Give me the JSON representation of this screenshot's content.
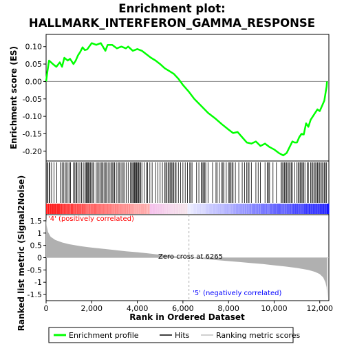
{
  "chart_data": {
    "type": "line",
    "title_line1": "Enrichment plot:",
    "title_line2": "HALLMARK_INTERFERON_GAMMA_RESPONSE",
    "ylabel_top": "Enrichment score (ES)",
    "ylabel_bottom": "Ranked list metric (Signal2Noise)",
    "xlabel": "Rank in Ordered Dataset",
    "x_range": [
      0,
      12400
    ],
    "x_ticks": [
      0,
      2000,
      4000,
      6000,
      8000,
      10000,
      12000
    ],
    "x_tick_labels": [
      "0",
      "2,000",
      "4,000",
      "6,000",
      "8,000",
      "10,000",
      "12,000"
    ],
    "es_ylim": [
      -0.228,
      0.135
    ],
    "es_ticks": [
      0.1,
      0.05,
      0.0,
      -0.05,
      -0.1,
      -0.15,
      -0.2
    ],
    "es_tick_labels": [
      "0.10",
      "0.05",
      "0.00",
      "-0.05",
      "-0.10",
      "-0.15",
      "-0.20"
    ],
    "metric_ylim": [
      -1.75,
      1.75
    ],
    "metric_ticks": [
      1.5,
      1.0,
      0.5,
      0.0,
      -0.5,
      -1.0,
      -1.5
    ],
    "metric_tick_labels": [
      "1.5",
      "1",
      "0.5",
      "0",
      "-0.5",
      "-1",
      "-1.5"
    ],
    "zero_cross_rank": 6265,
    "zero_cross_label": "Zero cross at 6265",
    "pos_label": "'4' (positively correlated)",
    "neg_label": "'5' (negatively correlated)",
    "pos_color": "#ff0000",
    "neg_color": "#0000ff",
    "curve_color": "#00ff00",
    "metric_fill_color": "#b0b0b0",
    "enrichment_profile": [
      [
        0,
        0.0
      ],
      [
        60,
        0.03
      ],
      [
        130,
        0.06
      ],
      [
        300,
        0.05
      ],
      [
        450,
        0.042
      ],
      [
        600,
        0.055
      ],
      [
        700,
        0.042
      ],
      [
        800,
        0.068
      ],
      [
        950,
        0.06
      ],
      [
        1050,
        0.065
      ],
      [
        1200,
        0.05
      ],
      [
        1300,
        0.06
      ],
      [
        1400,
        0.075
      ],
      [
        1500,
        0.085
      ],
      [
        1600,
        0.098
      ],
      [
        1700,
        0.09
      ],
      [
        1800,
        0.092
      ],
      [
        2000,
        0.11
      ],
      [
        2200,
        0.105
      ],
      [
        2400,
        0.11
      ],
      [
        2600,
        0.088
      ],
      [
        2700,
        0.105
      ],
      [
        2900,
        0.105
      ],
      [
        3100,
        0.095
      ],
      [
        3300,
        0.1
      ],
      [
        3500,
        0.095
      ],
      [
        3600,
        0.1
      ],
      [
        3800,
        0.088
      ],
      [
        4000,
        0.093
      ],
      [
        4200,
        0.088
      ],
      [
        4400,
        0.078
      ],
      [
        4600,
        0.068
      ],
      [
        4800,
        0.06
      ],
      [
        5000,
        0.05
      ],
      [
        5200,
        0.038
      ],
      [
        5400,
        0.03
      ],
      [
        5600,
        0.022
      ],
      [
        5800,
        0.008
      ],
      [
        6000,
        -0.01
      ],
      [
        6265,
        -0.03
      ],
      [
        6500,
        -0.05
      ],
      [
        6800,
        -0.07
      ],
      [
        7100,
        -0.09
      ],
      [
        7400,
        -0.105
      ],
      [
        7700,
        -0.122
      ],
      [
        8000,
        -0.138
      ],
      [
        8200,
        -0.148
      ],
      [
        8400,
        -0.145
      ],
      [
        8600,
        -0.16
      ],
      [
        8800,
        -0.175
      ],
      [
        9000,
        -0.178
      ],
      [
        9200,
        -0.172
      ],
      [
        9400,
        -0.185
      ],
      [
        9600,
        -0.178
      ],
      [
        9800,
        -0.188
      ],
      [
        10000,
        -0.195
      ],
      [
        10200,
        -0.205
      ],
      [
        10400,
        -0.212
      ],
      [
        10550,
        -0.205
      ],
      [
        10700,
        -0.185
      ],
      [
        10800,
        -0.172
      ],
      [
        10900,
        -0.175
      ],
      [
        11000,
        -0.175
      ],
      [
        11100,
        -0.16
      ],
      [
        11200,
        -0.15
      ],
      [
        11300,
        -0.152
      ],
      [
        11400,
        -0.12
      ],
      [
        11500,
        -0.13
      ],
      [
        11600,
        -0.11
      ],
      [
        11700,
        -0.1
      ],
      [
        11800,
        -0.09
      ],
      [
        11900,
        -0.08
      ],
      [
        12000,
        -0.085
      ],
      [
        12100,
        -0.07
      ],
      [
        12200,
        -0.055
      ],
      [
        12250,
        -0.035
      ],
      [
        12300,
        -0.015
      ],
      [
        12320,
        0.0
      ]
    ],
    "metric_profile": [
      [
        0,
        1.6
      ],
      [
        25,
        1.3
      ],
      [
        80,
        1.05
      ],
      [
        200,
        0.85
      ],
      [
        400,
        0.72
      ],
      [
        700,
        0.62
      ],
      [
        1000,
        0.55
      ],
      [
        1500,
        0.47
      ],
      [
        2000,
        0.41
      ],
      [
        2500,
        0.36
      ],
      [
        3000,
        0.31
      ],
      [
        3500,
        0.26
      ],
      [
        4000,
        0.22
      ],
      [
        4500,
        0.17
      ],
      [
        5000,
        0.12
      ],
      [
        5500,
        0.07
      ],
      [
        6000,
        0.02
      ],
      [
        6265,
        0.0
      ],
      [
        6500,
        -0.02
      ],
      [
        7000,
        -0.06
      ],
      [
        7500,
        -0.1
      ],
      [
        8000,
        -0.14
      ],
      [
        8500,
        -0.18
      ],
      [
        9000,
        -0.22
      ],
      [
        9500,
        -0.26
      ],
      [
        10000,
        -0.31
      ],
      [
        10500,
        -0.36
      ],
      [
        11000,
        -0.42
      ],
      [
        11500,
        -0.5
      ],
      [
        11800,
        -0.58
      ],
      [
        12000,
        -0.67
      ],
      [
        12150,
        -0.8
      ],
      [
        12250,
        -1.0
      ],
      [
        12300,
        -1.2
      ],
      [
        12330,
        -1.65
      ]
    ],
    "hits": [
      40,
      60,
      130,
      160,
      240,
      350,
      470,
      620,
      700,
      760,
      830,
      880,
      960,
      1020,
      1070,
      1200,
      1260,
      1310,
      1350,
      1400,
      1480,
      1550,
      1630,
      1700,
      1750,
      1780,
      1820,
      1860,
      1900,
      1940,
      1980,
      2050,
      2100,
      2200,
      2260,
      2320,
      2380,
      2440,
      2490,
      2540,
      2600,
      2650,
      2720,
      2800,
      2850,
      2900,
      2950,
      3000,
      3080,
      3150,
      3200,
      3250,
      3320,
      3380,
      3450,
      3520,
      3600,
      3700,
      3760,
      3800,
      3840,
      3880,
      3920,
      3950,
      3980,
      4020,
      4060,
      4100,
      4150,
      4200,
      4300,
      4400,
      4450,
      4550,
      4650,
      4800,
      4900,
      5000,
      5100,
      5200,
      5250,
      5300,
      5350,
      5400,
      5450,
      5500,
      5550,
      5600,
      5650,
      5700,
      5800,
      5900,
      6000,
      6100,
      6200,
      6300,
      6350,
      6400,
      6600,
      6700,
      6800,
      6850,
      6900,
      6950,
      7000,
      7100,
      7300,
      7450,
      7500,
      7600,
      7700,
      7750,
      7800,
      7900,
      8000,
      8050,
      8100,
      8150,
      8200,
      8300,
      8450,
      8600,
      8700,
      8800,
      8850,
      8900,
      9000,
      9200,
      9300,
      9400,
      9600,
      9700,
      9750,
      9800,
      9950,
      10100,
      10300,
      10350,
      10400,
      10450,
      10500,
      10550,
      10600,
      10650,
      10700,
      10750,
      10800,
      10900,
      11000,
      11050,
      11100,
      11150,
      11200,
      11250,
      11300,
      11350,
      11450,
      11500,
      11600,
      11650,
      11700,
      11750,
      11800,
      11850,
      11900,
      11950,
      12000,
      12050,
      12100,
      12150,
      12200,
      12250,
      12300
    ],
    "legend": [
      {
        "label": "Enrichment profile",
        "color": "#00ff00",
        "kind": "line-thick"
      },
      {
        "label": "Hits",
        "color": "#000000",
        "kind": "line"
      },
      {
        "label": "Ranking metric scores",
        "color": "#c0c0c0",
        "kind": "line"
      }
    ]
  }
}
